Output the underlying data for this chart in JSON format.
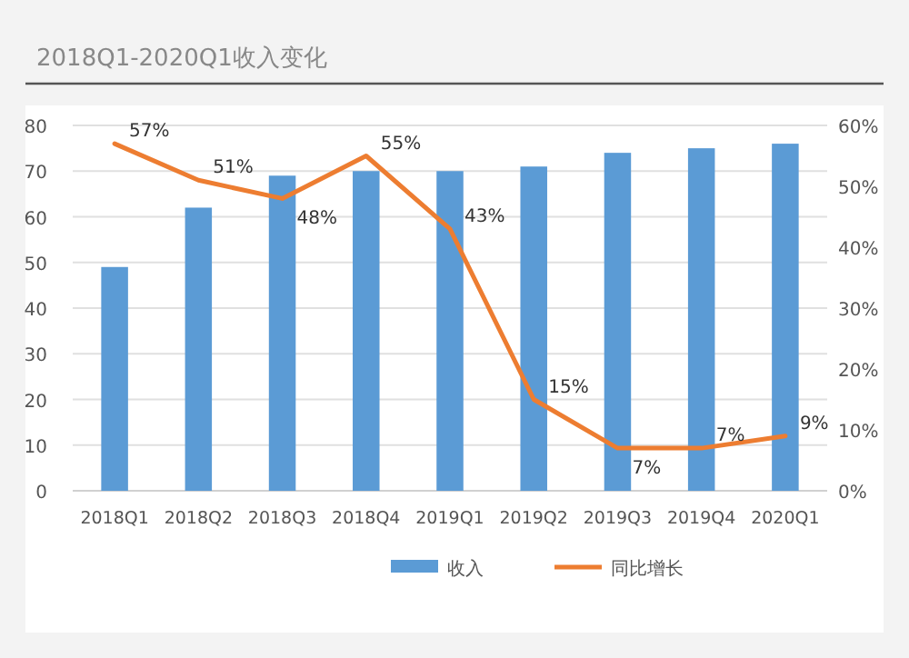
{
  "chart_data": {
    "type": "bar",
    "title": "2018Q1-2020Q1收入变化",
    "categories": [
      "2018Q1",
      "2018Q2",
      "2018Q3",
      "2018Q4",
      "2019Q1",
      "2019Q2",
      "2019Q3",
      "2019Q4",
      "2020Q1"
    ],
    "series": [
      {
        "name": "收入",
        "color": "#5b9bd5",
        "values": [
          49,
          62,
          69,
          70,
          70,
          71,
          74,
          75,
          76
        ]
      },
      {
        "name": "同比增长",
        "type": "line",
        "axis": "y2",
        "color": "#ed7d31",
        "values": [
          57,
          51,
          48,
          55,
          43,
          15,
          7,
          7,
          9
        ],
        "value_labels": [
          "57%",
          "51%",
          "48%",
          "55%",
          "43%",
          "15%",
          "7%",
          "7%",
          "9%"
        ]
      }
    ],
    "ylim": [
      0,
      80
    ],
    "yticks": [
      0,
      10,
      20,
      30,
      40,
      50,
      60,
      70,
      80
    ],
    "y2lim": [
      0,
      60
    ],
    "y2ticks": [
      {
        "value": 0,
        "label": "0%"
      },
      {
        "value": 10,
        "label": "10%"
      },
      {
        "value": 20,
        "label": "20%"
      },
      {
        "value": 30,
        "label": "30%"
      },
      {
        "value": 40,
        "label": "40%"
      },
      {
        "value": 50,
        "label": "50%"
      },
      {
        "value": 60,
        "label": "60%"
      }
    ],
    "grid": "y",
    "legend": "bottom"
  }
}
